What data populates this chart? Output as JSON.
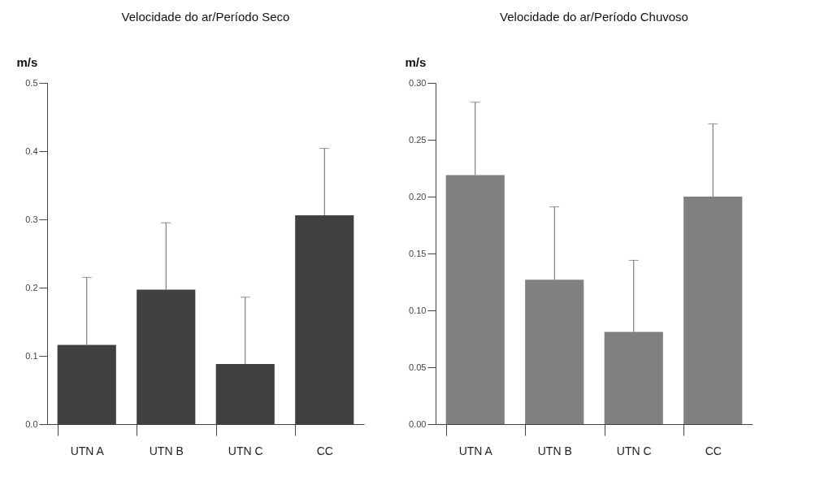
{
  "chart_data": [
    {
      "type": "bar",
      "title": "Velocidade do ar/Período Seco",
      "ylabel": "m/s",
      "categories": [
        "UTN A",
        "UTN B",
        "UTN C",
        "CC"
      ],
      "series": [
        {
          "color": "#404040",
          "values": [
            0.116,
            0.197,
            0.088,
            0.306
          ],
          "errors": [
            [
              0.116,
              0.215
            ],
            [
              0.197,
              0.295
            ],
            [
              0.088,
              0.186
            ],
            [
              0.306,
              0.404
            ]
          ]
        }
      ],
      "ylim": [
        0,
        0.5
      ],
      "yticks": [
        {
          "value": 0,
          "label": "0.0"
        },
        {
          "value": 0.1,
          "label": "0.1"
        },
        {
          "value": 0.2,
          "label": "0.2"
        },
        {
          "value": 0.3,
          "label": "0.3"
        },
        {
          "value": 0.4,
          "label": "0.4"
        },
        {
          "value": 0.5,
          "label": "0.5"
        }
      ],
      "grid": false
    },
    {
      "type": "bar",
      "title": "Velocidade do ar/Período Chuvoso",
      "ylabel": "m/s",
      "categories": [
        "UTN A",
        "UTN B",
        "UTN C",
        "CC"
      ],
      "series": [
        {
          "color": "#808080",
          "values": [
            0.219,
            0.127,
            0.081,
            0.2
          ],
          "errors": [
            [
              0.219,
              0.283
            ],
            [
              0.127,
              0.191
            ],
            [
              0.081,
              0.144
            ],
            [
              0.2,
              0.264
            ]
          ]
        }
      ],
      "ylim": [
        0,
        0.3
      ],
      "yticks": [
        {
          "value": 0,
          "label": "0.00"
        },
        {
          "value": 0.05,
          "label": "0.05"
        },
        {
          "value": 0.1,
          "label": "0.10"
        },
        {
          "value": 0.15,
          "label": "0.15"
        },
        {
          "value": 0.2,
          "label": "0.20"
        },
        {
          "value": 0.25,
          "label": "0.25"
        },
        {
          "value": 0.3,
          "label": "0.30"
        }
      ],
      "grid": false
    }
  ]
}
